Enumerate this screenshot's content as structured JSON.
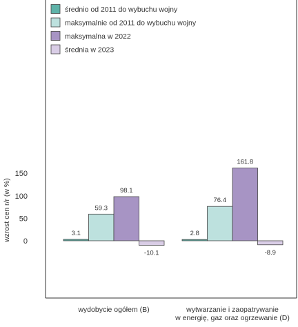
{
  "chart_data": {
    "type": "bar",
    "ylabel": "wzrost cen r/r (w %)",
    "categories": [
      [
        "wydobycie ogółem (B)"
      ],
      [
        "wytwarzanie i zaopatrywanie",
        "w energię, gaz oraz ogrzewanie (D)"
      ]
    ],
    "series": [
      {
        "name": "średnio od 2011 do wybuchu wojny",
        "color": "#5fb3a9",
        "values": [
          3.1,
          2.8
        ]
      },
      {
        "name": "maksymalnie od 2011 do wybuchu wojny",
        "color": "#bde1de",
        "values": [
          59.3,
          76.4
        ]
      },
      {
        "name": "maksymalna w 2022",
        "color": "#a794c4",
        "values": [
          98.1,
          161.8
        ]
      },
      {
        "name": "średnia w 2023",
        "color": "#d9cde6",
        "values": [
          -10.1,
          -8.9
        ]
      }
    ],
    "value_labels": [
      [
        "3.1",
        "2.8"
      ],
      [
        "59.3",
        "76.4"
      ],
      [
        "98.1",
        "161.8"
      ],
      [
        "-10.1",
        "-8.9"
      ]
    ],
    "yticks": [
      0,
      50,
      100,
      150
    ],
    "ytick_labels": [
      "0",
      "50",
      "100",
      "150"
    ],
    "ylim": [
      -50,
      230
    ],
    "grid": false,
    "legend_position": "top-left"
  }
}
